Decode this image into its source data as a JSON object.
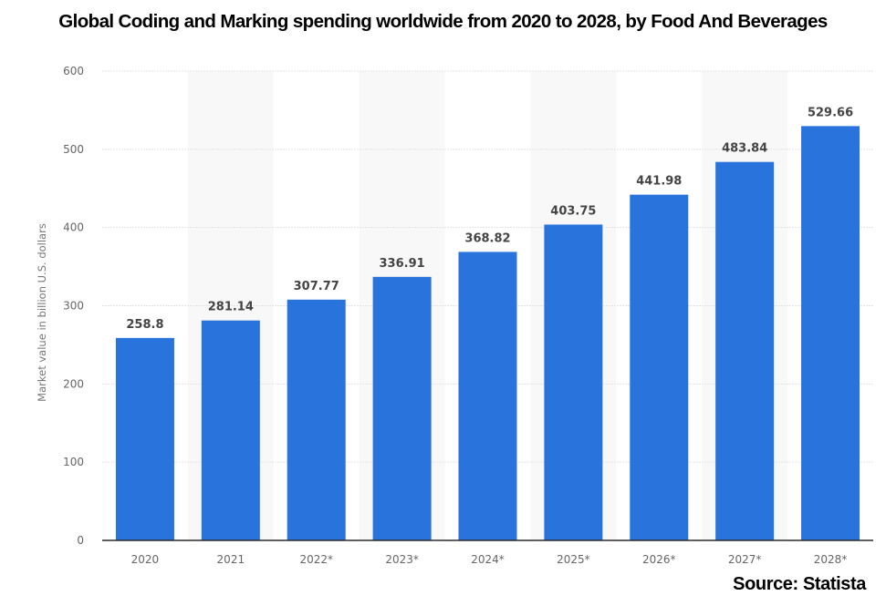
{
  "chart_data": {
    "type": "bar",
    "title": "Global Coding and Marking spending worldwide from 2020 to 2028, by Food And Beverages",
    "xlabel": "",
    "ylabel": "Market value in billion U.S. dollars",
    "categories": [
      "2020",
      "2021",
      "2022*",
      "2023*",
      "2024*",
      "2025*",
      "2026*",
      "2027*",
      "2028*"
    ],
    "values": [
      258.8,
      281.14,
      307.77,
      336.91,
      368.82,
      403.75,
      441.98,
      483.84,
      529.66
    ],
    "value_labels": [
      "258.8",
      "281.14",
      "307.77",
      "336.91",
      "368.82",
      "403.75",
      "441.98",
      "483.84",
      "529.66"
    ],
    "ylim": [
      0,
      600
    ],
    "yticks": [
      0,
      100,
      200,
      300,
      400,
      500,
      600
    ],
    "ytick_labels": [
      "0",
      "100",
      "200",
      "300",
      "400",
      "500",
      "600"
    ],
    "grid": true,
    "legend": "none",
    "bar_color": "#2874dc",
    "source": "Source: Statista"
  }
}
